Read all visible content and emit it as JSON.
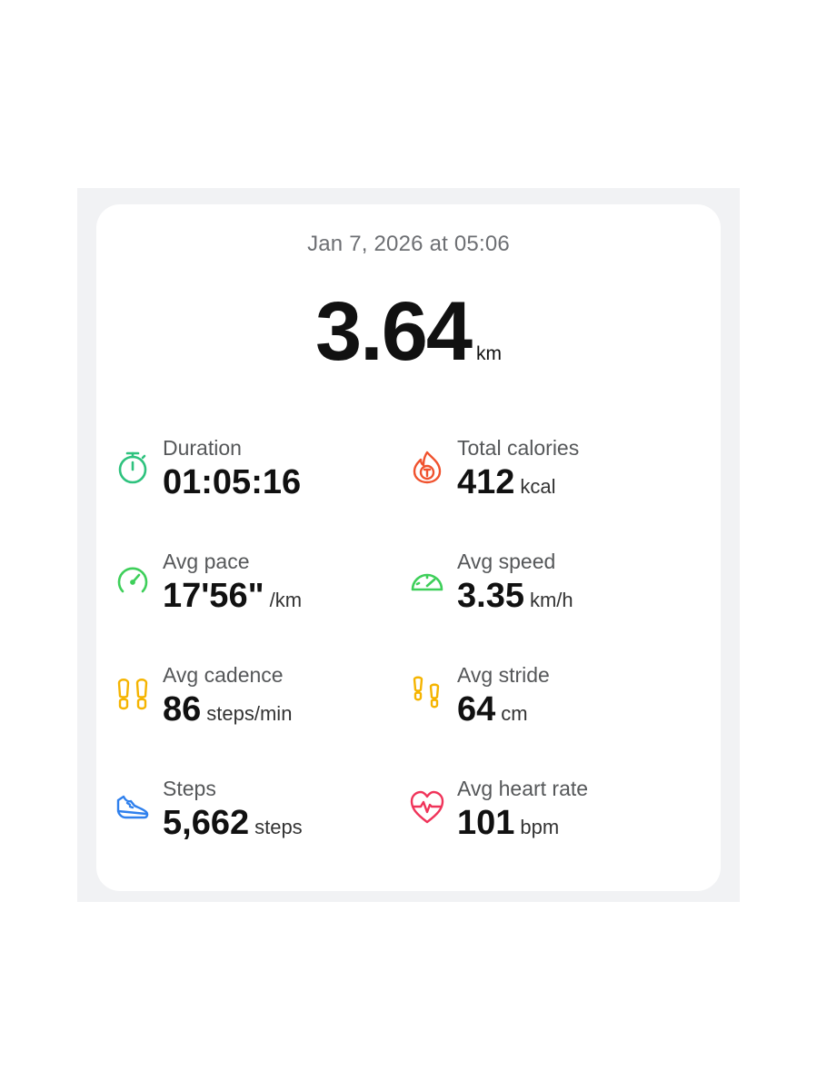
{
  "workout": {
    "date": "Jan 7, 2026 at 05:06",
    "distance": "3.64",
    "distance_unit": "km"
  },
  "stats": {
    "duration": {
      "label": "Duration",
      "value": "01:05:16",
      "unit": "",
      "icon": "stopwatch-icon",
      "color": "#2ec27e"
    },
    "calories": {
      "label": "Total calories",
      "value": "412",
      "unit": "kcal",
      "icon": "flame-icon",
      "color": "#f0522e"
    },
    "pace": {
      "label": "Avg pace",
      "value": "17'56\"",
      "unit": "/km",
      "icon": "pace-gauge-icon",
      "color": "#3ecf5a"
    },
    "speed": {
      "label": "Avg speed",
      "value": "3.35",
      "unit": "km/h",
      "icon": "speedometer-icon",
      "color": "#3ecf5a"
    },
    "cadence": {
      "label": "Avg cadence",
      "value": "86",
      "unit": "steps/min",
      "icon": "footprints-icon",
      "color": "#f5b400"
    },
    "stride": {
      "label": "Avg stride",
      "value": "64",
      "unit": "cm",
      "icon": "stride-footprints-icon",
      "color": "#f5b400"
    },
    "steps": {
      "label": "Steps",
      "value": "5,662",
      "unit": "steps",
      "icon": "sneaker-icon",
      "color": "#2f80ed"
    },
    "heart_rate": {
      "label": "Avg heart rate",
      "value": "101",
      "unit": "bpm",
      "icon": "heart-pulse-icon",
      "color": "#f0345a"
    }
  }
}
